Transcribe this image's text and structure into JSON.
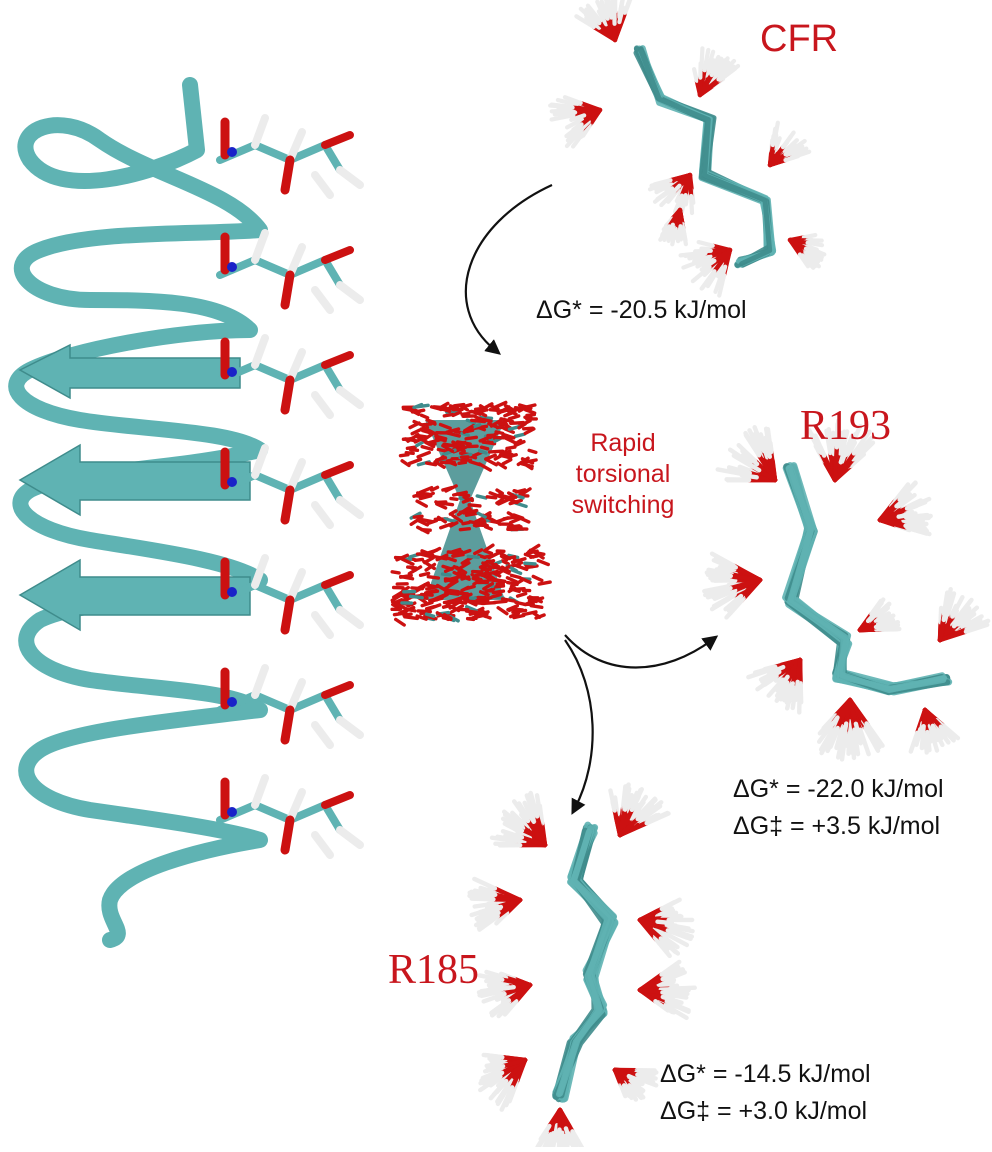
{
  "colors": {
    "ribbon": "#5fb3b3",
    "ribbon_dark": "#3f8c8c",
    "oxygen": "#cc1111",
    "hydrogen": "#ececec",
    "nitrogen": "#1a22c8",
    "label_red": "#c8161d",
    "arrow": "#111111"
  },
  "labels": {
    "cfr_title": "CFR",
    "cfr_energy": "ΔG* = -20.5 kJ/mol",
    "r193_title": "R193",
    "r193_energy_star": "ΔG* = -22.0 kJ/mol",
    "r193_energy_ddagger": "ΔG‡ = +3.5 kJ/mol",
    "r185_title": "R185",
    "r185_energy_star": "ΔG* = -14.5 kJ/mol",
    "r185_energy_ddagger": "ΔG‡ = +3.0 kJ/mol",
    "switching_line1": "Rapid",
    "switching_line2": "torsional",
    "switching_line3": "switching"
  },
  "structures": {
    "protein": "beta-helix-ribbon",
    "ensembles": [
      "CFR",
      "R193",
      "R185"
    ],
    "central": "torsion-ensemble"
  },
  "icons": {
    "arrow_head": "triangle-arrowhead-icon"
  }
}
